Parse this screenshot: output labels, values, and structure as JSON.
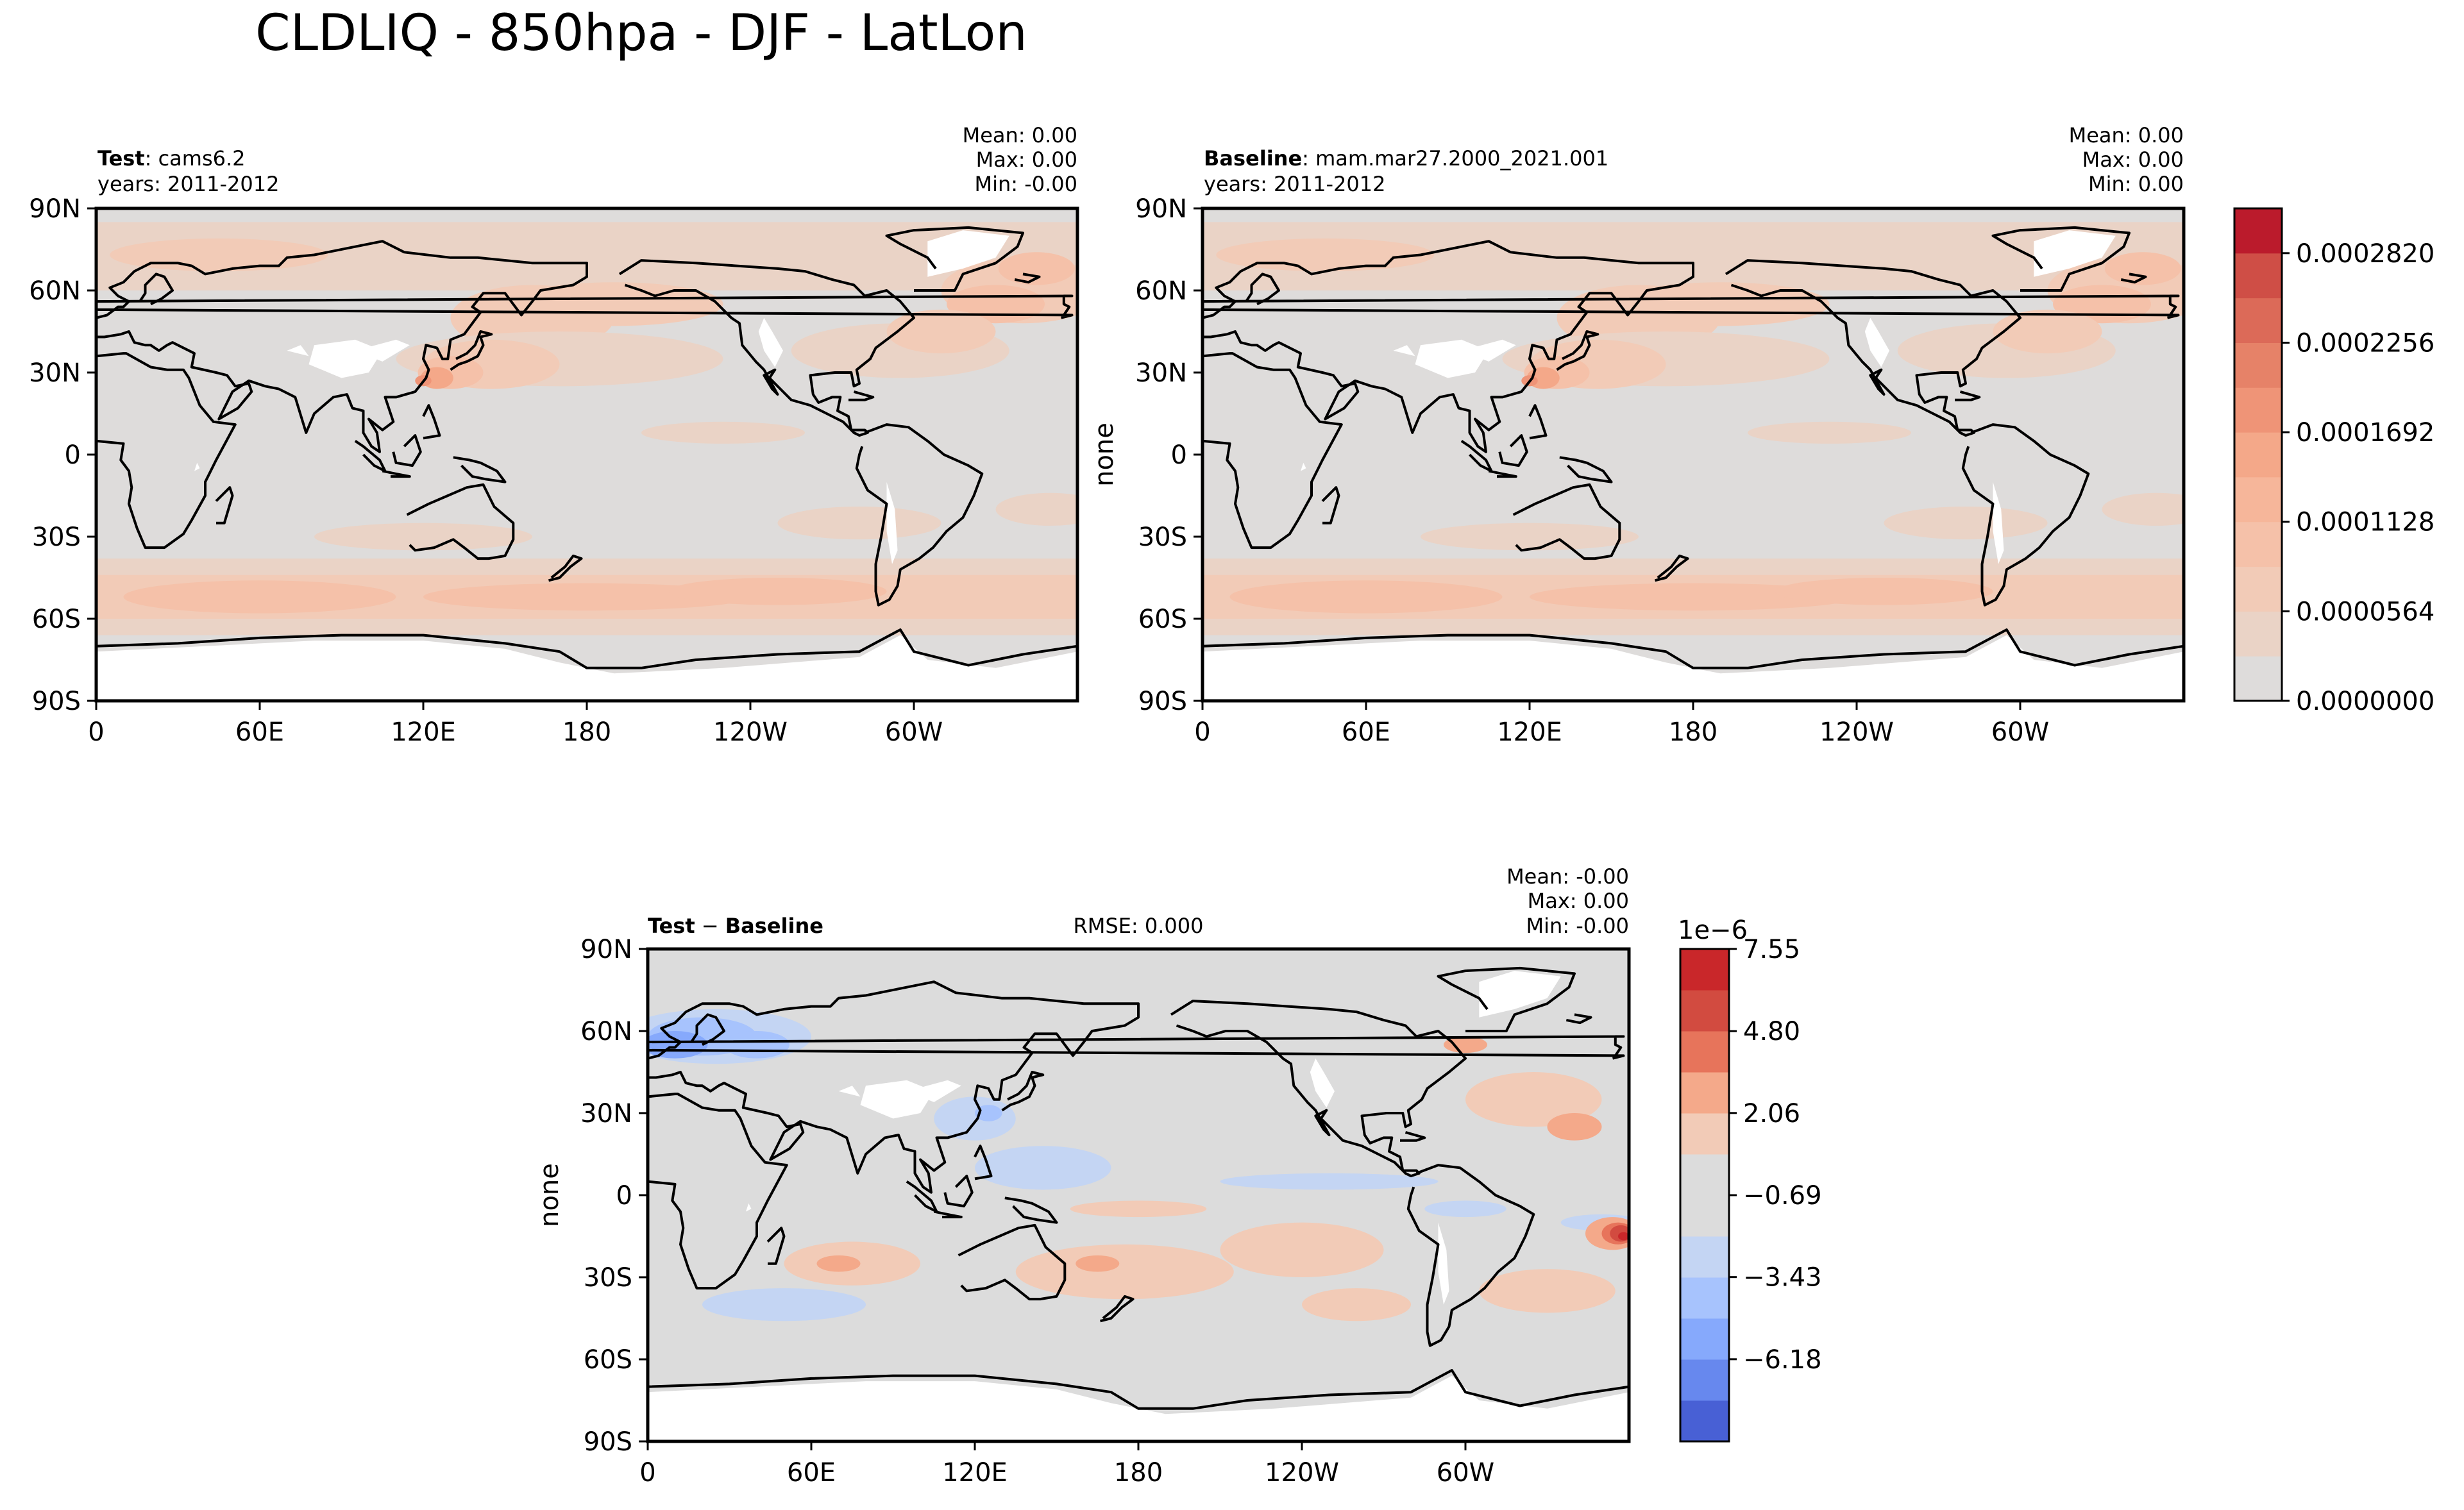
{
  "figure_title": "CLDLIQ - 850hpa - DJF - LatLon",
  "colors": {
    "land_gray": "#dedcdb",
    "diff_gray": "#dcdcdc",
    "coast": "#000000",
    "missing": "#ffffff"
  },
  "panels": [
    {
      "id": "test",
      "label_bold": "Test",
      "label_text": ": cams6.2",
      "years": "years: 2011-2012",
      "stats": [
        "Mean:  0.00",
        "Max:  0.00",
        "Min: -0.00"
      ],
      "ylabel": ""
    },
    {
      "id": "baseline",
      "label_bold": "Baseline",
      "label_text": ": mam.mar27.2000_2021.001",
      "years": "years: 2011-2012",
      "stats": [
        "Mean:  0.00",
        "Max:  0.00",
        "Min:  0.00"
      ],
      "ylabel": "none"
    },
    {
      "id": "diff",
      "label_bold": "Test",
      "label_op": " − ",
      "label_bold2": "Baseline",
      "rmse": "RMSE: 0.000",
      "stats": [
        "Mean: -0.00",
        "Max:  0.00",
        "Min: -0.00"
      ],
      "ylabel": "none"
    }
  ],
  "chart_data": [
    {
      "type": "heatmap",
      "title": "Test: cams6.2",
      "x_ticks": [
        "0",
        "60E",
        "120E",
        "180",
        "120W",
        "60W"
      ],
      "y_ticks": [
        "90N",
        "60N",
        "30N",
        "0",
        "30S",
        "60S",
        "90S"
      ],
      "xlim": [
        0,
        360
      ],
      "ylim": [
        -90,
        90
      ],
      "stats": {
        "mean": 0.0,
        "max": 0.0,
        "min": -0.0
      },
      "units": "none",
      "zonal_pattern": [
        {
          "lat_band": [
            60,
            85
          ],
          "level": "moderate-high (NE Atlantic, NW Pacific)"
        },
        {
          "lat_band": [
            20,
            45
          ],
          "level": "high over NW Pacific (peak near 120E-140E)"
        },
        {
          "lat_band": [
            -30,
            20
          ],
          "level": "low"
        },
        {
          "lat_band": [
            -65,
            -35
          ],
          "level": "moderate (Southern Ocean storm track)"
        }
      ]
    },
    {
      "type": "heatmap",
      "title": "Baseline: mam.mar27.2000_2021.001",
      "x_ticks": [
        "0",
        "60E",
        "120E",
        "180",
        "120W",
        "60W"
      ],
      "y_ticks": [
        "90N",
        "60N",
        "30N",
        "0",
        "30S",
        "60S",
        "90S"
      ],
      "xlim": [
        0,
        360
      ],
      "ylim": [
        -90,
        90
      ],
      "stats": {
        "mean": 0.0,
        "max": 0.0,
        "min": 0.0
      },
      "colorbar": {
        "ticks": [
          "0.0000000",
          "0.0000564",
          "0.0001128",
          "0.0001692",
          "0.0002256",
          "0.0002820"
        ],
        "tick_values": [
          0.0,
          5.64e-05,
          0.0001128,
          0.0001692,
          0.0002256,
          0.000282
        ],
        "vmin": 0.0,
        "vmax": 0.0003102,
        "levels": 11,
        "colors": [
          "#dedcdb",
          "#ead3c6",
          "#f2cbb7",
          "#f5c1a9",
          "#f6b69a",
          "#f4a889",
          "#ef9477",
          "#e68268",
          "#dc6a58",
          "#cf4e46",
          "#bb1b2c"
        ]
      }
    },
    {
      "type": "heatmap",
      "title": "Test − Baseline",
      "x_ticks": [
        "0",
        "60E",
        "120E",
        "180",
        "120W",
        "60W"
      ],
      "y_ticks": [
        "90N",
        "60N",
        "30N",
        "0",
        "30S",
        "60S",
        "90S"
      ],
      "xlim": [
        0,
        360
      ],
      "ylim": [
        -90,
        90
      ],
      "rmse": 0.0,
      "stats": {
        "mean": -0.0,
        "max": 0.0,
        "min": -0.0
      },
      "colorbar": {
        "offset_label": "1e−6",
        "ticks": [
          "−6.18",
          "−3.43",
          "−0.69",
          "2.06",
          "4.80",
          "7.55"
        ],
        "tick_values": [
          -6.18,
          -3.43,
          -0.69,
          2.06,
          4.8,
          7.55
        ],
        "vmin": -8.93,
        "vmax": 7.55,
        "levels": 12,
        "colors": [
          "#4860d5",
          "#6788ee",
          "#86a9fc",
          "#a7c3fd",
          "#c4d5f3",
          "#dcdcdc",
          "#dcdcdc",
          "#f2cbb7",
          "#f4a98a",
          "#e7745b",
          "#d24b40",
          "#c9272a"
        ]
      },
      "notable_features": [
        "negative (blue) anomalies over North Atlantic / Europe 40N-70N",
        "positive (red) anomaly off South America near 10S-20S, 0-10W",
        "scattered small positive anomalies over Southern Hemisphere oceans"
      ]
    }
  ]
}
